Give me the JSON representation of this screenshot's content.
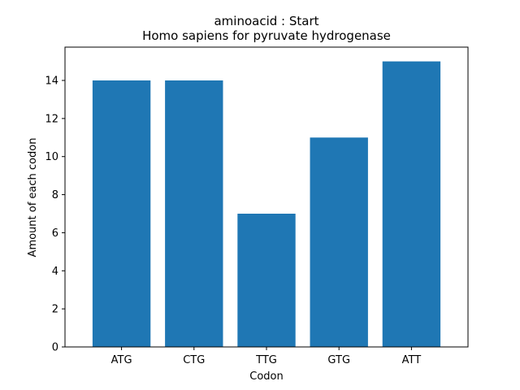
{
  "chart_data": {
    "type": "bar",
    "title": "aminoacid : Start",
    "subtitle": "Homo sapiens for pyruvate hydrogenase",
    "xlabel": "Codon",
    "ylabel": "Amount of each codon",
    "categories": [
      "ATG",
      "CTG",
      "TTG",
      "GTG",
      "ATT"
    ],
    "values": [
      14,
      14,
      7,
      11,
      15
    ],
    "ylim": [
      0,
      15.75
    ],
    "yticks": [
      0,
      2,
      4,
      6,
      8,
      10,
      12,
      14
    ],
    "bar_color": "#1f77b4",
    "grid": false,
    "legend": "none"
  }
}
